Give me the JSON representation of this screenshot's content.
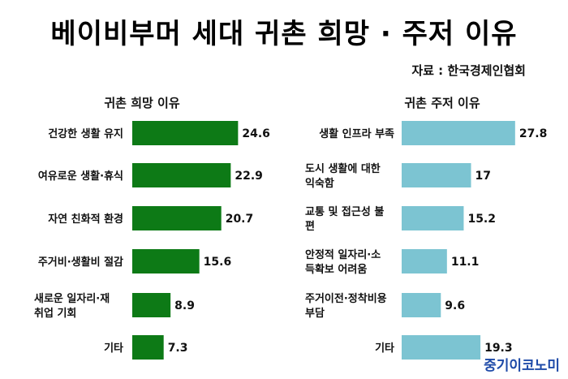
{
  "header": {
    "title": "베이비부머 세대 귀촌 희망 · 주저 이유",
    "source": "자료 : 한국경제인협회"
  },
  "footer": {
    "logo_text": "중기이코노미"
  },
  "colors": {
    "left_bar": "#0d7a16",
    "right_bar": "#7cc4d2"
  },
  "chart_data": [
    {
      "type": "bar",
      "orientation": "horizontal",
      "title": "귀촌 희망 이유",
      "categories": [
        [
          "건강한 생활 유지"
        ],
        [
          "여유로운 생활·휴식"
        ],
        [
          "자연 친화적 환경"
        ],
        [
          "주거비·생활비 절감"
        ],
        [
          "새로운 일자리·재",
          "취업 기회"
        ],
        [
          "기타"
        ]
      ],
      "values": [
        24.6,
        22.9,
        20.7,
        15.6,
        8.9,
        7.3
      ],
      "value_labels": [
        "24.6",
        "22.9",
        "20.7",
        "15.6",
        "8.9",
        "7.3"
      ],
      "grid": false
    },
    {
      "type": "bar",
      "orientation": "horizontal",
      "title": "귀촌 주저 이유",
      "categories": [
        [
          "생활 인프라 부족"
        ],
        [
          "도시 생활에 대한",
          "익숙함"
        ],
        [
          "교통 및 접근성 불",
          "편"
        ],
        [
          "안정적 일자리·소",
          "득확보 어려움"
        ],
        [
          "주거이전·정착비용",
          "부담"
        ],
        [
          "기타"
        ]
      ],
      "values": [
        27.8,
        17,
        15.2,
        11.1,
        9.6,
        19.3
      ],
      "value_labels": [
        "27.8",
        "17",
        "15.2",
        "11.1",
        "9.6",
        "19.3"
      ],
      "grid": false
    }
  ]
}
